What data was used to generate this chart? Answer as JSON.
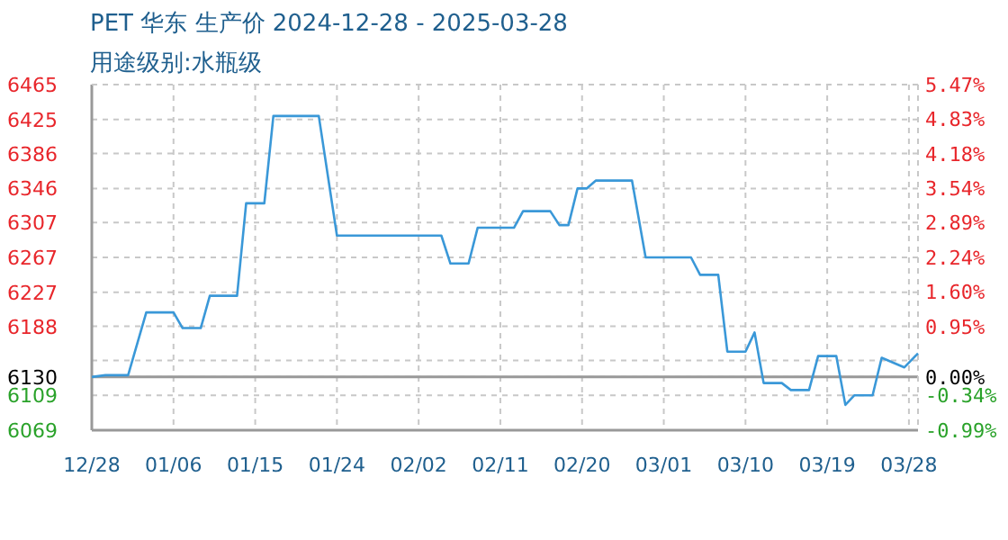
{
  "chart_data": {
    "type": "line",
    "title": "PET 华东 生产价 2024-12-28 - 2025-03-28",
    "subtitle": "用途级别:水瓶级",
    "color": "#3a98d8",
    "grid": true,
    "x": [
      "2024-12-28",
      "2024-12-29T12:00",
      "2025-01-01",
      "2025-01-03",
      "2025-01-06",
      "2025-01-07",
      "2025-01-09",
      "2025-01-10",
      "2025-01-13",
      "2025-01-14",
      "2025-01-16",
      "2025-01-17",
      "2025-01-22",
      "2025-01-24",
      "2025-02-04T12:00",
      "2025-02-05T12:00",
      "2025-02-07T12:00",
      "2025-02-08T12:00",
      "2025-02-12T12:00",
      "2025-02-13T12:00",
      "2025-02-16T12:00",
      "2025-02-17T12:00",
      "2025-02-18T12:00",
      "2025-02-19T12:00",
      "2025-02-20T12:00",
      "2025-02-21T12:00",
      "2025-02-25T12:00",
      "2025-02-27",
      "2025-03-04",
      "2025-03-05",
      "2025-03-07",
      "2025-03-08",
      "2025-03-10",
      "2025-03-11",
      "2025-03-12",
      "2025-03-14",
      "2025-03-15",
      "2025-03-17",
      "2025-03-18",
      "2025-03-20",
      "2025-03-21",
      "2025-03-22",
      "2025-03-24",
      "2025-03-25",
      "2025-03-27T12:00",
      "2025-03-29"
    ],
    "values": [
      6130,
      6132,
      6132,
      6204,
      6204,
      6186,
      6186,
      6223,
      6223,
      6329,
      6329,
      6429,
      6429,
      6292,
      6292,
      6260,
      6260,
      6301,
      6301,
      6320,
      6320,
      6304,
      6304,
      6346,
      6346,
      6355,
      6355,
      6267,
      6267,
      6247,
      6247,
      6159,
      6159,
      6181,
      6123,
      6123,
      6115,
      6115,
      6154,
      6154,
      6098,
      6109,
      6109,
      6152,
      6141,
      6157
    ],
    "xlim": [
      "2024-12-28",
      "2025-03-29"
    ],
    "xticks": [
      {
        "value": "2024-12-28",
        "label": "12/28"
      },
      {
        "value": "2025-01-06",
        "label": "01/06"
      },
      {
        "value": "2025-01-15",
        "label": "01/15"
      },
      {
        "value": "2025-01-24",
        "label": "01/24"
      },
      {
        "value": "2025-02-02",
        "label": "02/02"
      },
      {
        "value": "2025-02-11",
        "label": "02/11"
      },
      {
        "value": "2025-02-20",
        "label": "02/20"
      },
      {
        "value": "2025-03-01",
        "label": "03/01"
      },
      {
        "value": "2025-03-10",
        "label": "03/10"
      },
      {
        "value": "2025-03-19",
        "label": "03/19"
      },
      {
        "value": "2025-03-28",
        "label": "03/28"
      }
    ],
    "ylim": [
      6069,
      6465
    ],
    "yticks": [
      6069,
      6109,
      6130,
      {
        "value": 6149,
        "label": null
      },
      6188,
      6227,
      6267,
      6307,
      6346,
      6386,
      6425,
      6465
    ],
    "y2lim": [
      -0.99,
      5.47
    ],
    "y2ticks": [
      {
        "value": -0.99,
        "label": "-0.99%"
      },
      {
        "value": -0.34,
        "label": "-0.34%"
      },
      {
        "value": 0,
        "label": "0.00%"
      },
      {
        "value": 0.95,
        "label": "0.95%"
      },
      {
        "value": 1.6,
        "label": "1.60%"
      },
      {
        "value": 2.24,
        "label": "2.24%"
      },
      {
        "value": 2.89,
        "label": "2.89%"
      },
      {
        "value": 3.54,
        "label": "3.54%"
      },
      {
        "value": 4.18,
        "label": "4.18%"
      },
      {
        "value": 4.83,
        "label": "4.83%"
      },
      {
        "value": 5.47,
        "label": "5.47%"
      }
    ],
    "ref_lines": [
      {
        "axis": "y",
        "value": 6130,
        "color": "#999999"
      }
    ]
  }
}
